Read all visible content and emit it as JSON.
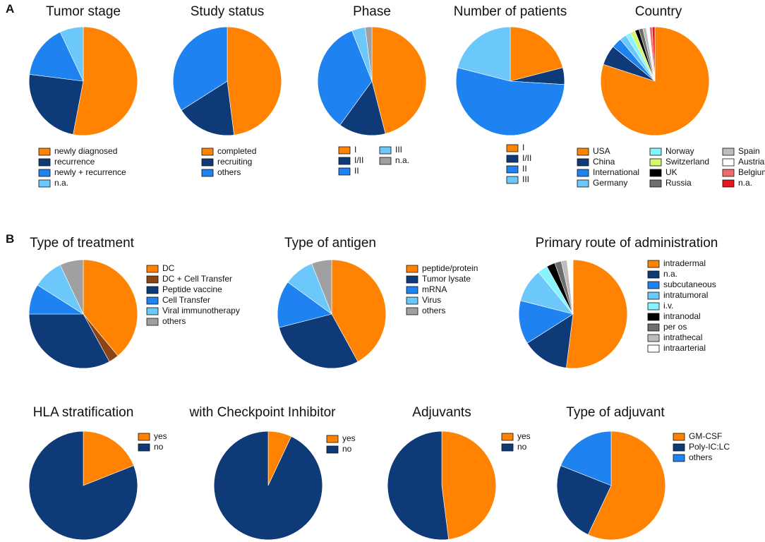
{
  "panel_labels": {
    "a": "A",
    "b": "B"
  },
  "colors": {
    "orange": "#FF8200",
    "navy": "#0E3A78",
    "blue": "#1E82F0",
    "lightblue": "#6CC8FA",
    "gray": "#A0A0A0",
    "brown": "#8B4513",
    "cyan": "#86F4FC",
    "lime": "#D0F870",
    "black": "#000000",
    "darkgray": "#6E6E6E",
    "lightgray": "#BDBDBD",
    "white": "#FFFFFF",
    "pink": "#F26B6B",
    "red": "#E8141E"
  },
  "chart_data": [
    {
      "type": "pie",
      "id": "tumor-stage",
      "title": "Tumor stage",
      "labels": [
        "newly diagnosed",
        "recurrence",
        "newly + recurrence",
        "n.a."
      ],
      "values": [
        53,
        24,
        16,
        7
      ],
      "colors": [
        "#FF8200",
        "#0E3A78",
        "#1E82F0",
        "#6CC8FA"
      ]
    },
    {
      "type": "pie",
      "id": "study-status",
      "title": "Study status",
      "labels": [
        "completed",
        "recruiting",
        "others"
      ],
      "values": [
        48,
        18,
        34
      ],
      "colors": [
        "#FF8200",
        "#0E3A78",
        "#1E82F0"
      ]
    },
    {
      "type": "pie",
      "id": "phase",
      "title": "Phase",
      "labels": [
        "I",
        "I/II",
        "II",
        "III",
        "n.a."
      ],
      "values": [
        46,
        14,
        34,
        4,
        2
      ],
      "colors": [
        "#FF8200",
        "#0E3A78",
        "#1E82F0",
        "#6CC8FA",
        "#A0A0A0"
      ],
      "legend_columns": [
        [
          "I",
          "I/II",
          "II"
        ],
        [
          "III",
          "n.a."
        ]
      ]
    },
    {
      "type": "pie",
      "id": "number-of-patients",
      "title": "Number of patients",
      "labels": [
        "I",
        "I/II",
        "II",
        "III"
      ],
      "values": [
        21,
        5,
        53,
        21
      ],
      "colors": [
        "#FF8200",
        "#0E3A78",
        "#1E82F0",
        "#6CC8FA"
      ]
    },
    {
      "type": "pie",
      "id": "country",
      "title": "Country",
      "labels": [
        "USA",
        "China",
        "International",
        "Germany",
        "Norway",
        "Switzerland",
        "UK",
        "Russia",
        "Spain",
        "Austria",
        "Belgium",
        "n.a."
      ],
      "values": [
        80,
        6,
        3,
        2,
        1.5,
        1.5,
        1.2,
        1.2,
        1,
        1,
        0.8,
        0.8
      ],
      "colors": [
        "#FF8200",
        "#0E3A78",
        "#1E82F0",
        "#6CC8FA",
        "#86F4FC",
        "#D0F870",
        "#000000",
        "#6E6E6E",
        "#BDBDBD",
        "#FFFFFF",
        "#F26B6B",
        "#E8141E"
      ],
      "legend_columns": [
        [
          "USA",
          "China",
          "International",
          "Germany"
        ],
        [
          "Norway",
          "Switzerland",
          "UK",
          "Russia"
        ],
        [
          "Spain",
          "Austria",
          "Belgium",
          "n.a."
        ]
      ]
    },
    {
      "type": "pie",
      "id": "type-of-treatment",
      "title": "Type of treatment",
      "labels": [
        "DC",
        "DC + Cell Transfer",
        "Peptide vaccine",
        "Cell Transfer",
        "Viral immunotherapy",
        "others"
      ],
      "values": [
        39,
        3,
        33,
        9,
        9,
        7
      ],
      "colors": [
        "#FF8200",
        "#8B4513",
        "#0E3A78",
        "#1E82F0",
        "#6CC8FA",
        "#A0A0A0"
      ]
    },
    {
      "type": "pie",
      "id": "type-of-antigen",
      "title": "Type of antigen",
      "labels": [
        "peptide/protein",
        "Tumor lysate",
        "mRNA",
        "Virus",
        "others"
      ],
      "values": [
        42,
        29,
        14,
        9,
        6
      ],
      "colors": [
        "#FF8200",
        "#0E3A78",
        "#1E82F0",
        "#6CC8FA",
        "#A0A0A0"
      ]
    },
    {
      "type": "pie",
      "id": "primary-route",
      "title": "Primary route of administration",
      "labels": [
        "intradermal",
        "n.a.",
        "subcutaneous",
        "intratumoral",
        "i.v.",
        "intranodal",
        "per os",
        "intrathecal",
        "intraarterial"
      ],
      "values": [
        52,
        14,
        13,
        10,
        3,
        2.5,
        2,
        1.7,
        1.8
      ],
      "colors": [
        "#FF8200",
        "#0E3A78",
        "#1E82F0",
        "#6CC8FA",
        "#86F4FC",
        "#000000",
        "#6E6E6E",
        "#BDBDBD",
        "#FFFFFF"
      ]
    },
    {
      "type": "pie",
      "id": "hla-stratification",
      "title": "HLA stratification",
      "labels": [
        "yes",
        "no"
      ],
      "values": [
        19,
        81
      ],
      "colors": [
        "#FF8200",
        "#0E3A78"
      ]
    },
    {
      "type": "pie",
      "id": "checkpoint-inhibitor",
      "title": "with Checkpoint Inhibitor",
      "labels": [
        "yes",
        "no"
      ],
      "values": [
        7,
        93
      ],
      "colors": [
        "#FF8200",
        "#0E3A78"
      ]
    },
    {
      "type": "pie",
      "id": "adjuvants",
      "title": "Adjuvants",
      "labels": [
        "yes",
        "no"
      ],
      "values": [
        48,
        52
      ],
      "colors": [
        "#FF8200",
        "#0E3A78"
      ]
    },
    {
      "type": "pie",
      "id": "type-of-adjuvant",
      "title": "Type of adjuvant",
      "labels": [
        "GM-CSF",
        "Poly-IC:LC",
        "others"
      ],
      "values": [
        57,
        24,
        19
      ],
      "colors": [
        "#FF8200",
        "#0E3A78",
        "#1E82F0"
      ]
    }
  ]
}
